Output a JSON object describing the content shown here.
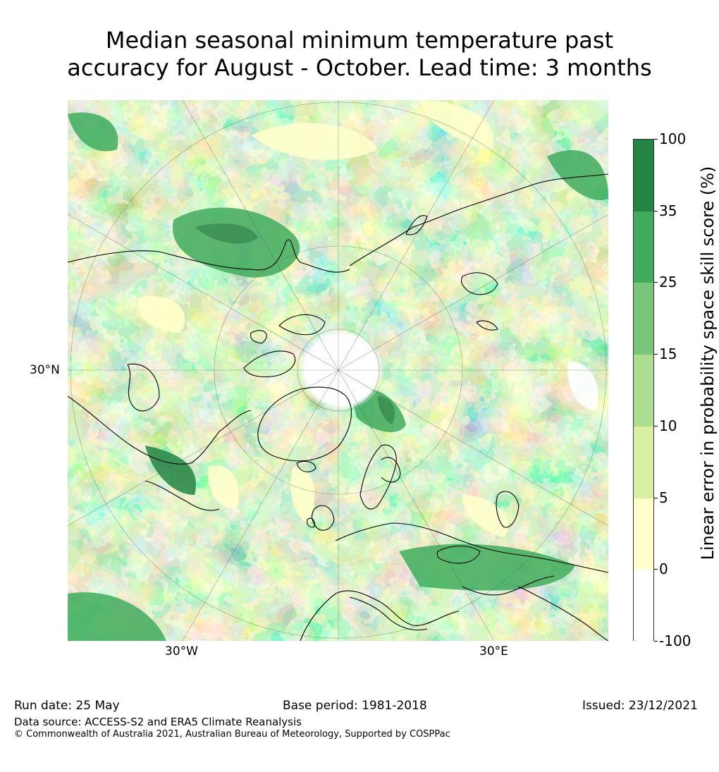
{
  "title": {
    "line1": "Median seasonal minimum temperature past",
    "line2": "accuracy for August - October. Lead time: 3 months"
  },
  "map": {
    "projection": "north-polar-stereographic",
    "lat_label": "30°N",
    "lon_labels": {
      "west": "30°W",
      "east": "30°E"
    }
  },
  "colorbar": {
    "title": "Linear error in probability space skill score (%)",
    "bins": [
      {
        "range": [
          -100,
          0
        ],
        "color": "#ffffff"
      },
      {
        "range": [
          0,
          5
        ],
        "color": "#ffffcc"
      },
      {
        "range": [
          5,
          10
        ],
        "color": "#d9f0a3"
      },
      {
        "range": [
          10,
          15
        ],
        "color": "#addd8e"
      },
      {
        "range": [
          15,
          25
        ],
        "color": "#78c679"
      },
      {
        "range": [
          25,
          35
        ],
        "color": "#41ab5d"
      },
      {
        "range": [
          35,
          100
        ],
        "color": "#238443"
      }
    ],
    "tick_labels": [
      "100",
      "35",
      "25",
      "15",
      "10",
      "5",
      "0",
      "-100"
    ]
  },
  "footer": {
    "run_date": "Run date: 25 May",
    "base_period": "Base period: 1981-2018",
    "issued": "Issued: 23/12/2021",
    "data_source": "Data source: ACCESS-S2 and ERA5 Climate Reanalysis",
    "copyright": "© Commonwealth of Australia 2021, Australian Bureau of Meteorology, Supported by COSPPac"
  }
}
